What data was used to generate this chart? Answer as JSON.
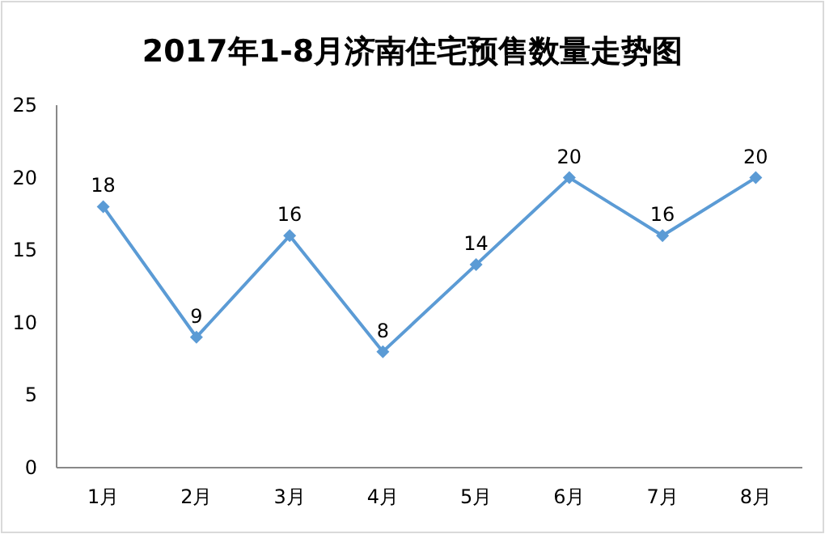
{
  "chart_data": {
    "type": "line",
    "title": "2017年1-8月济南住宅预售数量走势图",
    "categories": [
      "1月",
      "2月",
      "3月",
      "4月",
      "5月",
      "6月",
      "7月",
      "8月"
    ],
    "series": [
      {
        "color": "#5b9bd5",
        "values": [
          18,
          9,
          16,
          8,
          14,
          20,
          16,
          20
        ]
      }
    ],
    "ylim": [
      0,
      25
    ],
    "yticks": [
      0,
      5,
      10,
      15,
      20,
      25
    ],
    "data_labels": true,
    "marker": "diamond",
    "line_style": "solid"
  }
}
